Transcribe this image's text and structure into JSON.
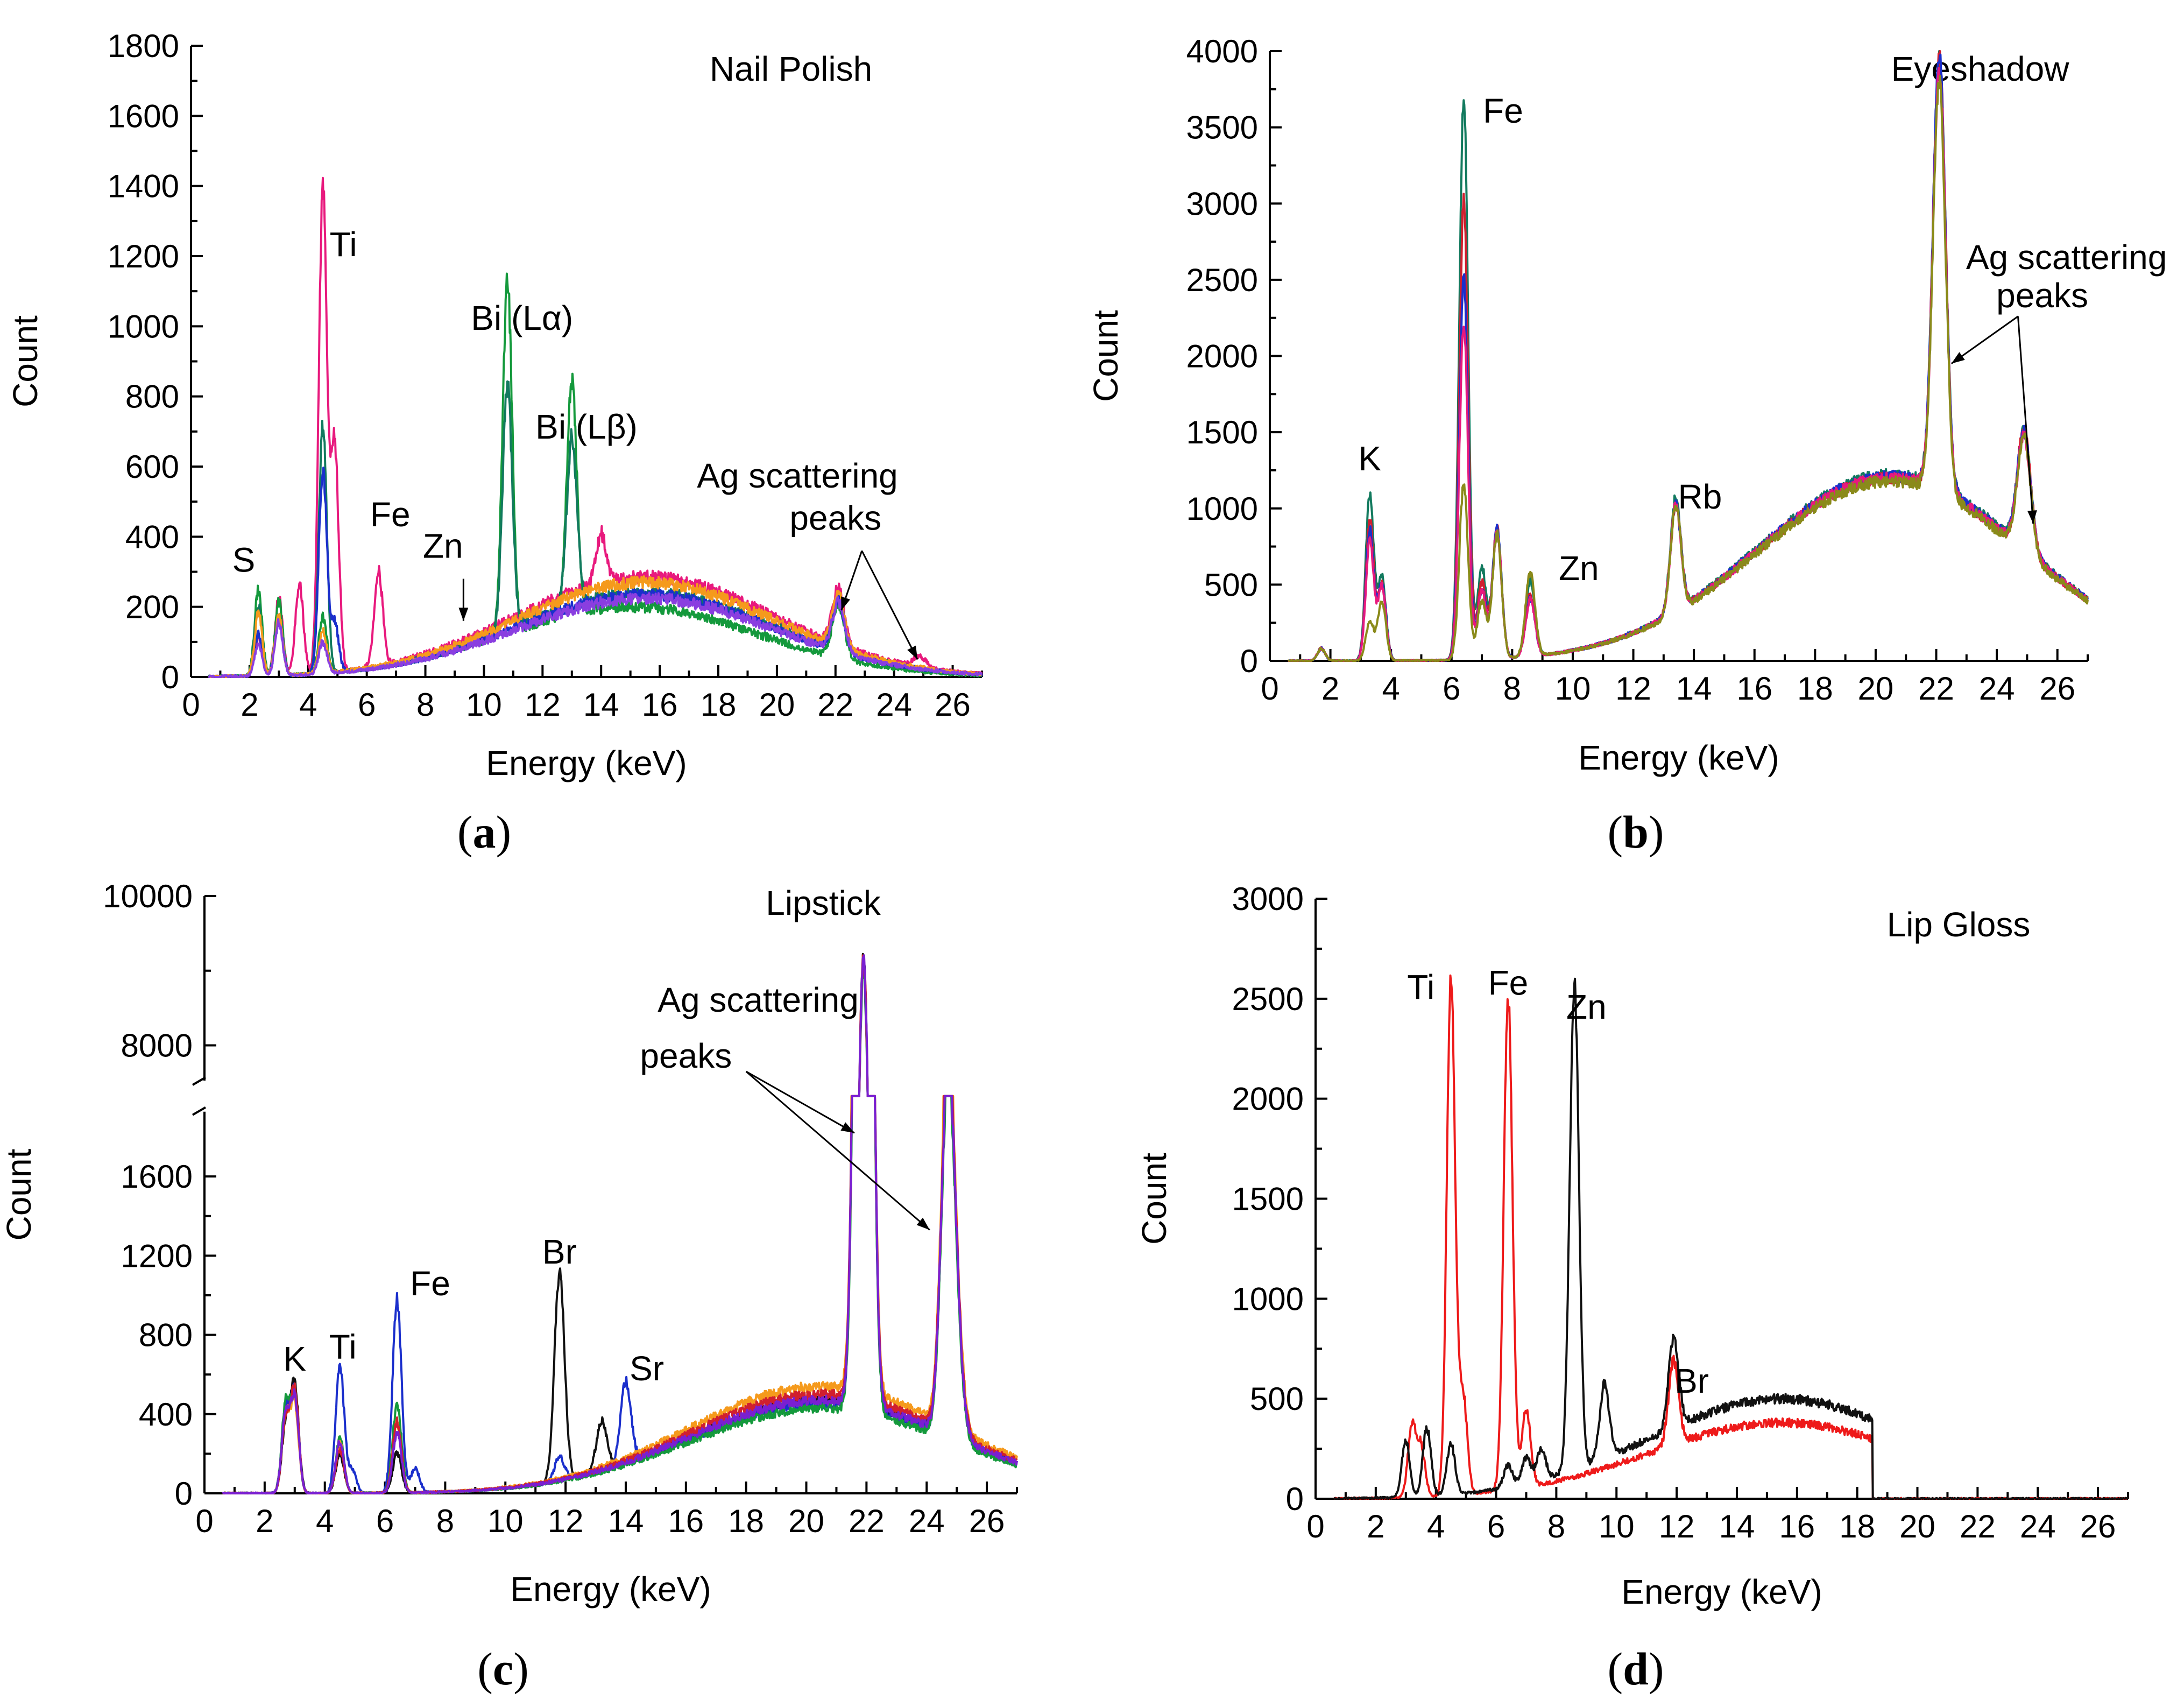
{
  "chart_data": [
    {
      "id": "a",
      "type": "line",
      "title": "Nail Polish",
      "panel_label": "a",
      "xlabel": "Energy (keV)",
      "ylabel": "Count",
      "xlim": [
        0,
        27
      ],
      "ylim": [
        0,
        1800
      ],
      "xticks": [
        0,
        2,
        4,
        6,
        8,
        10,
        12,
        14,
        16,
        18,
        20,
        22,
        24,
        26
      ],
      "yticks": [
        0,
        200,
        400,
        600,
        800,
        1000,
        1200,
        1400,
        1600,
        1800
      ],
      "xtick_labels": [
        "0",
        "2",
        "4",
        "6",
        "8",
        "10",
        "12",
        "14",
        "16",
        "18",
        "20",
        "22",
        "24",
        "26"
      ],
      "ytick_labels": [
        "0",
        "200",
        "400",
        "600",
        "800",
        "1000",
        "1200",
        "1400",
        "1600",
        "1800"
      ],
      "annotations": [
        {
          "text": "S",
          "x": 1.8,
          "y": 300
        },
        {
          "text": "Ti",
          "x": 5.2,
          "y": 1200
        },
        {
          "text": "Fe",
          "x": 6.8,
          "y": 430
        },
        {
          "text": "Zn",
          "x": 8.6,
          "y": 340
        },
        {
          "text": "Bi (Lα)",
          "x": 11.3,
          "y": 990
        },
        {
          "text": "Bi (Lβ)",
          "x": 13.5,
          "y": 680
        },
        {
          "text": "Ag scattering",
          "x": 20.7,
          "y": 540
        },
        {
          "text": "peaks",
          "x": 22.0,
          "y": 420
        }
      ],
      "series": [
        {
          "name": "pink",
          "color": "#e8197d",
          "peaks": [
            [
              2.3,
              110
            ],
            [
              3.0,
              220
            ],
            [
              3.7,
              260
            ],
            [
              4.5,
              1380
            ],
            [
              4.9,
              650
            ],
            [
              6.4,
              270
            ],
            [
              14.0,
              140
            ],
            [
              22.1,
              160
            ],
            [
              24.9,
              30
            ]
          ],
          "bg_peak": 285,
          "bg_center": 15.5
        },
        {
          "name": "green",
          "color": "#14993c",
          "peaks": [
            [
              2.3,
              245
            ],
            [
              3.0,
              210
            ],
            [
              4.5,
              160
            ],
            [
              10.8,
              1000
            ],
            [
              13.0,
              660
            ],
            [
              22.1,
              150
            ]
          ],
          "bg_peak": 200,
          "bg_center": 15.0
        },
        {
          "name": "teal",
          "color": "#127a5e",
          "peaks": [
            [
              2.3,
              200
            ],
            [
              3.0,
              170
            ],
            [
              4.5,
              700
            ],
            [
              10.8,
              700
            ],
            [
              13.0,
              480
            ],
            [
              22.1,
              150
            ]
          ],
          "bg_peak": 240,
          "bg_center": 15.5
        },
        {
          "name": "blue",
          "color": "#1b2fcc",
          "peaks": [
            [
              2.3,
              120
            ],
            [
              3.0,
              160
            ],
            [
              4.5,
              580
            ],
            [
              4.9,
              140
            ],
            [
              22.1,
              140
            ]
          ],
          "bg_peak": 235,
          "bg_center": 15.5
        },
        {
          "name": "orange",
          "color": "#f59a1c",
          "peaks": [
            [
              2.3,
              180
            ],
            [
              3.0,
              170
            ],
            [
              4.5,
              120
            ],
            [
              22.1,
              150
            ]
          ],
          "bg_peak": 270,
          "bg_center": 15.5
        },
        {
          "name": "violet",
          "color": "#8a3ee0",
          "peaks": [
            [
              2.3,
              90
            ],
            [
              3.0,
              150
            ],
            [
              4.5,
              90
            ],
            [
              22.1,
              140
            ]
          ],
          "bg_peak": 225,
          "bg_center": 15.5
        }
      ]
    },
    {
      "id": "b",
      "type": "line",
      "title": "Eyeshadow",
      "panel_label": "b",
      "xlabel": "Energy (keV)",
      "ylabel": "Count",
      "xlim": [
        0,
        27
      ],
      "ylim": [
        0,
        4000
      ],
      "xticks": [
        0,
        2,
        4,
        6,
        8,
        10,
        12,
        14,
        16,
        18,
        20,
        22,
        24,
        26
      ],
      "yticks": [
        0,
        500,
        1000,
        1500,
        2000,
        2500,
        3000,
        3500,
        4000
      ],
      "xtick_labels": [
        "0",
        "2",
        "4",
        "6",
        "8",
        "10",
        "12",
        "14",
        "16",
        "18",
        "20",
        "22",
        "24",
        "26"
      ],
      "ytick_labels": [
        "0",
        "500",
        "1000",
        "1500",
        "2000",
        "2500",
        "3000",
        "3500",
        "4000"
      ],
      "annotations": [
        {
          "text": "Fe",
          "x": 7.7,
          "y": 3530
        },
        {
          "text": "K",
          "x": 3.3,
          "y": 1250
        },
        {
          "text": "Zn",
          "x": 10.2,
          "y": 530
        },
        {
          "text": "Rb",
          "x": 14.2,
          "y": 1000
        },
        {
          "text": "Ag scattering",
          "x": 26.3,
          "y": 2570
        },
        {
          "text": "peaks",
          "x": 25.5,
          "y": 2320
        }
      ],
      "series": [
        {
          "name": "teal",
          "color": "#127a5e",
          "peaks": [
            [
              1.7,
              80
            ],
            [
              3.3,
              1100
            ],
            [
              3.7,
              550
            ],
            [
              6.4,
              3700
            ],
            [
              7.0,
              600
            ],
            [
              7.5,
              850
            ],
            [
              8.6,
              500
            ],
            [
              13.4,
              750
            ],
            [
              22.1,
              2800
            ],
            [
              24.9,
              780
            ]
          ],
          "bg_peak": 1220,
          "bg_center": 20.5
        },
        {
          "name": "red",
          "color": "#d11f2e",
          "peaks": [
            [
              1.7,
              80
            ],
            [
              3.3,
              920
            ],
            [
              3.7,
              500
            ],
            [
              6.4,
              3000
            ],
            [
              7.0,
              500
            ],
            [
              7.5,
              850
            ],
            [
              8.6,
              400
            ],
            [
              13.4,
              700
            ],
            [
              22.1,
              2850
            ],
            [
              24.9,
              800
            ]
          ],
          "bg_peak": 1200,
          "bg_center": 20.5
        },
        {
          "name": "blue",
          "color": "#1b2fcc",
          "peaks": [
            [
              1.7,
              80
            ],
            [
              3.3,
              850
            ],
            [
              3.7,
              500
            ],
            [
              6.4,
              2500
            ],
            [
              7.0,
              450
            ],
            [
              7.5,
              850
            ],
            [
              8.6,
              380
            ],
            [
              13.4,
              700
            ],
            [
              22.1,
              2850
            ],
            [
              24.9,
              780
            ]
          ],
          "bg_peak": 1210,
          "bg_center": 20.5
        },
        {
          "name": "magenta",
          "color": "#e8197d",
          "peaks": [
            [
              1.7,
              80
            ],
            [
              3.3,
              780
            ],
            [
              3.7,
              480
            ],
            [
              6.4,
              2200
            ],
            [
              7.0,
              450
            ],
            [
              7.5,
              830
            ],
            [
              8.6,
              370
            ],
            [
              13.4,
              700
            ],
            [
              22.1,
              2750
            ],
            [
              24.9,
              760
            ]
          ],
          "bg_peak": 1200,
          "bg_center": 20.5
        },
        {
          "name": "olive",
          "color": "#8a8a1a",
          "peaks": [
            [
              1.7,
              80
            ],
            [
              3.3,
              260
            ],
            [
              3.7,
              380
            ],
            [
              6.4,
              1150
            ],
            [
              7.0,
              380
            ],
            [
              7.5,
              820
            ],
            [
              8.6,
              550
            ],
            [
              13.4,
              700
            ],
            [
              22.1,
              2700
            ],
            [
              24.9,
              770
            ]
          ],
          "bg_peak": 1180,
          "bg_center": 20.5
        }
      ]
    },
    {
      "id": "c",
      "type": "line",
      "title": "Lipstick",
      "panel_label": "c",
      "xlabel": "Energy (keV)",
      "ylabel": "Count",
      "xlim": [
        0,
        27
      ],
      "ylim": [
        0,
        10000
      ],
      "axis_break": [
        1900,
        7600
      ],
      "xticks": [
        0,
        2,
        4,
        6,
        8,
        10,
        12,
        14,
        16,
        18,
        20,
        22,
        24,
        26
      ],
      "yticks": [
        0,
        400,
        800,
        1200,
        1600,
        8000,
        10000
      ],
      "xtick_labels": [
        "0",
        "2",
        "4",
        "6",
        "8",
        "10",
        "12",
        "14",
        "16",
        "18",
        "20",
        "22",
        "24",
        "26"
      ],
      "ytick_labels": [
        "0",
        "400",
        "800",
        "1200",
        "1600",
        "8000",
        "10000"
      ],
      "annotations": [
        {
          "text": "K",
          "x": 3.0,
          "y": 620
        },
        {
          "text": "Ti",
          "x": 4.6,
          "y": 680
        },
        {
          "text": "Fe",
          "x": 7.5,
          "y": 1000
        },
        {
          "text": "Br",
          "x": 11.8,
          "y": 1160
        },
        {
          "text": "Sr",
          "x": 14.7,
          "y": 570
        },
        {
          "text": "Ag scattering",
          "x": 18.4,
          "y": 8450
        },
        {
          "text": "peaks",
          "x": 16.0,
          "y": 7700
        }
      ],
      "series": [
        {
          "name": "black",
          "color": "#111111",
          "peaks": [
            [
              2.7,
              350
            ],
            [
              3.0,
              550
            ],
            [
              4.5,
              200
            ],
            [
              6.4,
              200
            ],
            [
              11.8,
              1050
            ],
            [
              13.2,
              250
            ],
            [
              21.9,
              8750
            ],
            [
              24.7,
              1750
            ],
            [
              25.0,
              350
            ]
          ],
          "bg_peak": 470,
          "bg_center": 20.5
        },
        {
          "name": "blue",
          "color": "#1b2fcc",
          "peaks": [
            [
              2.7,
              420
            ],
            [
              3.0,
              500
            ],
            [
              4.5,
              650
            ],
            [
              4.9,
              120
            ],
            [
              6.4,
              980
            ],
            [
              7.0,
              120
            ],
            [
              11.8,
              120
            ],
            [
              14.0,
              420
            ],
            [
              21.9,
              8700
            ],
            [
              24.7,
              1720
            ],
            [
              25.0,
              350
            ]
          ],
          "bg_peak": 450,
          "bg_center": 20.5
        },
        {
          "name": "green",
          "color": "#14993c",
          "peaks": [
            [
              2.7,
              450
            ],
            [
              3.0,
              480
            ],
            [
              4.5,
              280
            ],
            [
              6.4,
              450
            ],
            [
              21.9,
              8600
            ],
            [
              24.7,
              1700
            ],
            [
              25.0,
              330
            ]
          ],
          "bg_peak": 430,
          "bg_center": 20.5
        },
        {
          "name": "orange",
          "color": "#f59a1c",
          "peaks": [
            [
              2.7,
              380
            ],
            [
              3.0,
              450
            ],
            [
              4.5,
              250
            ],
            [
              6.4,
              350
            ],
            [
              21.9,
              8650
            ],
            [
              24.7,
              1800
            ],
            [
              25.0,
              360
            ]
          ],
          "bg_peak": 540,
          "bg_center": 20.5
        },
        {
          "name": "red",
          "color": "#d11f2e",
          "peaks": [
            [
              2.7,
              360
            ],
            [
              3.0,
              520
            ],
            [
              4.5,
              220
            ],
            [
              6.4,
              360
            ],
            [
              21.9,
              8700
            ],
            [
              24.7,
              1760
            ],
            [
              25.0,
              350
            ]
          ],
          "bg_peak": 500,
          "bg_center": 20.5
        },
        {
          "name": "purple",
          "color": "#7a1fd1",
          "peaks": [
            [
              2.7,
              400
            ],
            [
              3.0,
              470
            ],
            [
              4.5,
              260
            ],
            [
              6.4,
              300
            ],
            [
              21.9,
              8700
            ],
            [
              24.7,
              1740
            ],
            [
              25.0,
              340
            ]
          ],
          "bg_peak": 470,
          "bg_center": 20.5
        }
      ]
    },
    {
      "id": "d",
      "type": "line",
      "title": "Lip Gloss",
      "panel_label": "d",
      "xlabel": "Energy (keV)",
      "ylabel": "Count",
      "xlim": [
        0,
        27
      ],
      "ylim": [
        0,
        3000
      ],
      "xticks": [
        0,
        2,
        4,
        6,
        8,
        10,
        12,
        14,
        16,
        18,
        20,
        22,
        24,
        26
      ],
      "yticks": [
        0,
        500,
        1000,
        1500,
        2000,
        2500,
        3000
      ],
      "xtick_labels": [
        "0",
        "2",
        "4",
        "6",
        "8",
        "10",
        "12",
        "14",
        "16",
        "18",
        "20",
        "22",
        "24",
        "26"
      ],
      "ytick_labels": [
        "0",
        "500",
        "1000",
        "1500",
        "2000",
        "2500",
        "3000"
      ],
      "annotations": [
        {
          "text": "Ti",
          "x": 3.5,
          "y": 2500
        },
        {
          "text": "Fe",
          "x": 6.4,
          "y": 2520
        },
        {
          "text": "Zn",
          "x": 9.0,
          "y": 2400
        },
        {
          "text": "Br",
          "x": 12.5,
          "y": 530
        }
      ],
      "series": [
        {
          "name": "red",
          "color": "#ee1a1a",
          "peaks": [
            [
              3.2,
              350
            ],
            [
              3.5,
              250
            ],
            [
              4.5,
              2600
            ],
            [
              4.9,
              500
            ],
            [
              6.4,
              2460
            ],
            [
              7.0,
              380
            ],
            [
              11.9,
              420
            ]
          ],
          "bg_peak": 380,
          "bg_center": 15.5,
          "cutoff": 18.5
        },
        {
          "name": "black",
          "color": "#111111",
          "peaks": [
            [
              3.0,
              280
            ],
            [
              3.7,
              340
            ],
            [
              4.5,
              250
            ],
            [
              6.4,
              110
            ],
            [
              7.0,
              130
            ],
            [
              7.5,
              150
            ],
            [
              8.6,
              2420
            ],
            [
              9.6,
              370
            ],
            [
              11.9,
              450
            ]
          ],
          "bg_peak": 500,
          "bg_center": 15.5,
          "cutoff": 18.5
        }
      ]
    }
  ]
}
